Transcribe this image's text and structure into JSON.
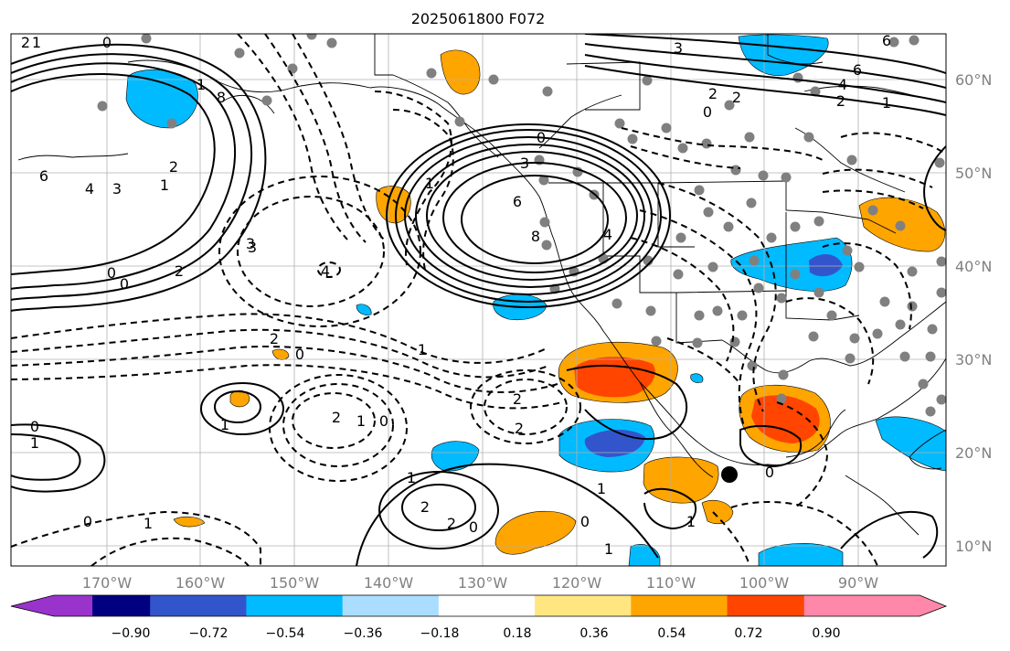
{
  "title": "2025061800 F072",
  "lon_labels": [
    "170°W",
    "160°W",
    "150°W",
    "140°W",
    "130°W",
    "120°W",
    "110°W",
    "100°W",
    "90°W"
  ],
  "lat_labels": [
    "60°N",
    "50°N",
    "40°N",
    "30°N",
    "20°N",
    "10°N"
  ],
  "colorbar": {
    "labels": [
      "−0.90",
      "−0.72",
      "−0.54",
      "−0.36",
      "−0.18",
      "0.18",
      "0.36",
      "0.54",
      "0.72",
      "0.90"
    ],
    "colors": [
      "#9933cc",
      "#000080",
      "#3355cc",
      "#00bbff",
      "#aaddff",
      "#ffffff",
      "#ffe680",
      "#ffa500",
      "#ff4500",
      "#b22222",
      "#ff88aa"
    ]
  },
  "contour_labels": [
    "0",
    "1",
    "2",
    "3",
    "4",
    "6",
    "8",
    "0",
    "1",
    "2",
    "0",
    "1",
    "2",
    "3",
    "4",
    "6",
    "8",
    "3",
    "6",
    "0",
    "1",
    "2",
    "3",
    "4",
    "6",
    "2",
    "1",
    "0",
    "3",
    "4",
    "2",
    "0",
    "2",
    "1",
    "0",
    "1",
    "2",
    "1",
    "0",
    "1",
    "2",
    "1",
    "2",
    "0",
    "1",
    "0",
    "2",
    "0",
    "2",
    "1",
    "0",
    "1",
    "1"
  ]
}
